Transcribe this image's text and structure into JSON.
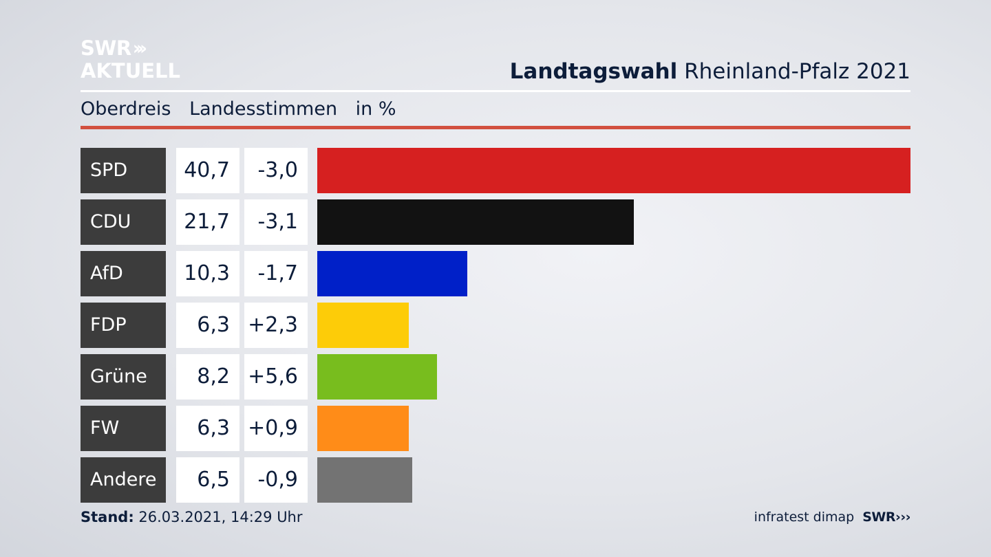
{
  "logo": {
    "line1": "SWR",
    "chevrons": "»",
    "line2": "AKTUELL"
  },
  "header": {
    "title_bold": "Landtagswahl",
    "title_rest": "Rheinland-Pfalz 2021"
  },
  "subheader": {
    "area": "Oberdreis",
    "measure": "Landesstimmen",
    "unit": "in %"
  },
  "chart_data": {
    "type": "bar",
    "orientation": "horizontal",
    "categories": [
      "SPD",
      "CDU",
      "AfD",
      "FDP",
      "Grüne",
      "FW",
      "Andere"
    ],
    "values": [
      40.7,
      21.7,
      10.3,
      6.3,
      8.2,
      6.3,
      6.5
    ],
    "value_labels": [
      "40,7",
      "21,7",
      "10,3",
      "6,3",
      "8,2",
      "6,3",
      "6,5"
    ],
    "changes": [
      -3.0,
      -3.1,
      -1.7,
      2.3,
      5.6,
      0.9,
      -0.9
    ],
    "change_labels": [
      "-3,0",
      "-3,1",
      "-1,7",
      "+2,3",
      "+5,6",
      "+0,9",
      "-0,9"
    ],
    "colors": [
      "#d62020",
      "#121212",
      "#0020c8",
      "#fdcc08",
      "#78bd1e",
      "#ff8c18",
      "#737373"
    ],
    "xlim": [
      0,
      40.7
    ],
    "grid": false,
    "legend": "none"
  },
  "footer": {
    "stand_label": "Stand:",
    "stand_value": "26.03.2021, 14:29 Uhr",
    "source": "infratest dimap",
    "brand": "SWR"
  }
}
